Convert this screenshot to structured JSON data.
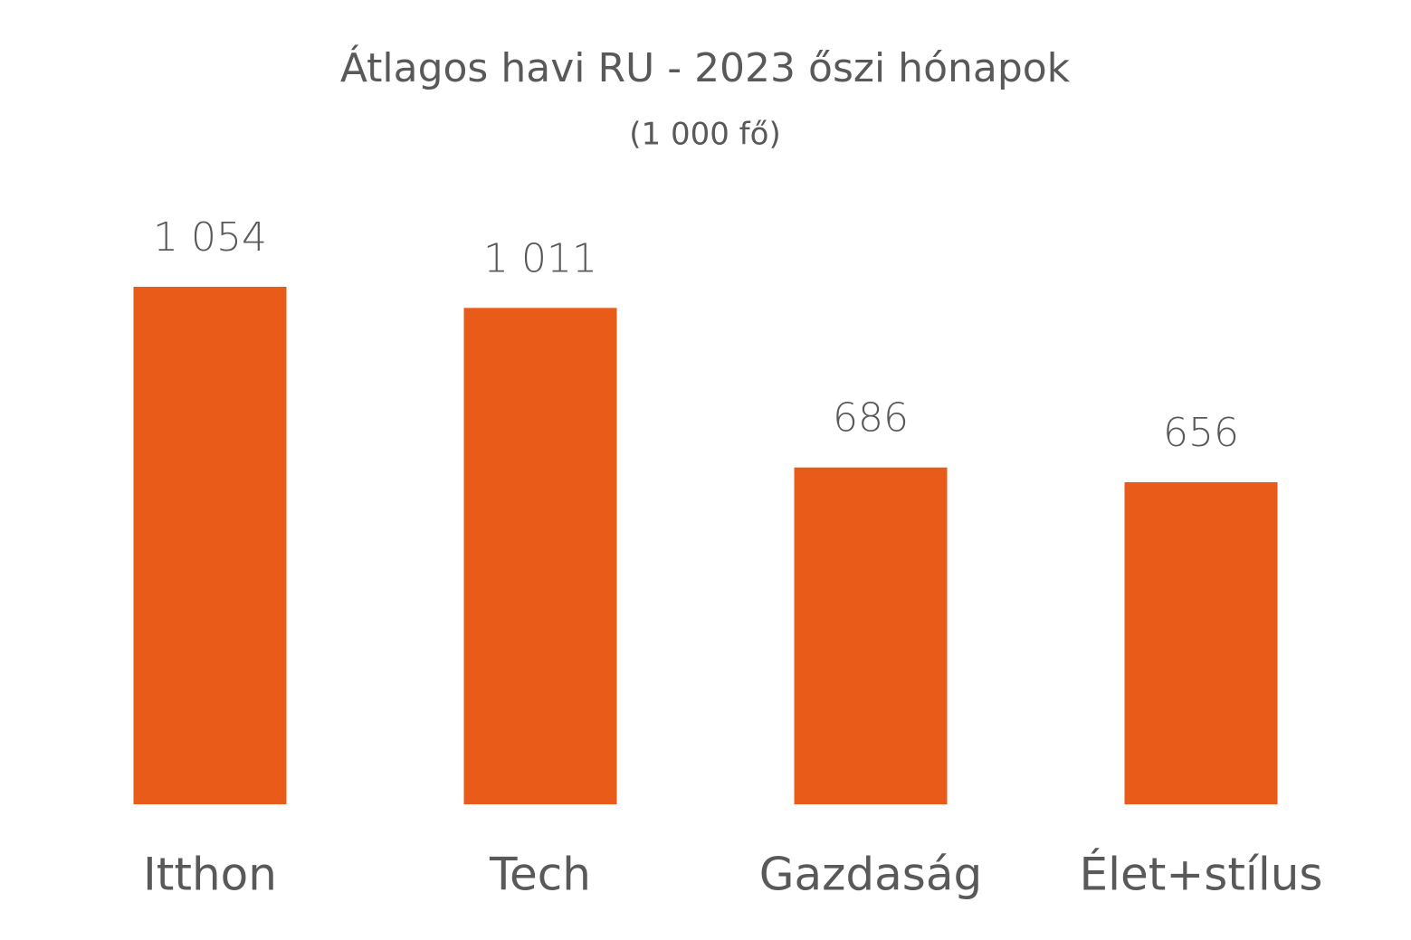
{
  "chart_data": {
    "type": "bar",
    "title": "Átlagos havi RU - 2023 őszi hónapok",
    "subtitle": "(1 000 fő)",
    "categories": [
      "Itthon",
      "Tech",
      "Gazdaság",
      "Élet+stílus"
    ],
    "values": [
      1054,
      1011,
      686,
      656
    ],
    "value_labels": [
      "1 054",
      "1 011",
      "686",
      "656"
    ],
    "color": "#e95b19"
  }
}
